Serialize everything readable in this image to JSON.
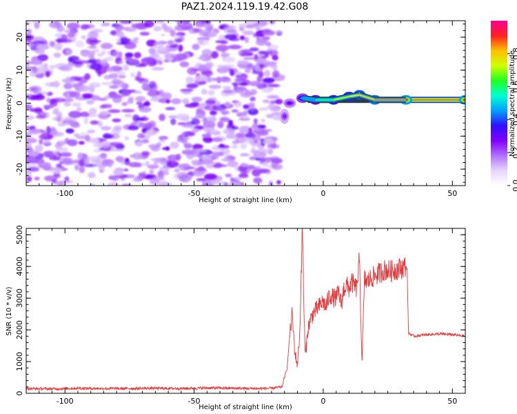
{
  "title": "PAZ1.2024.119.19.42.G08",
  "chart_data": [
    {
      "type": "heatmap",
      "xlabel": "Height of straight line (km)",
      "ylabel": "Frequency (Hz)",
      "xlim": [
        -115,
        55
      ],
      "ylim": [
        -25,
        25
      ],
      "x_ticks": [
        "-100",
        "-50",
        "0",
        "50"
      ],
      "x_tick_values": [
        -100,
        -50,
        0,
        50
      ],
      "y_ticks": [
        "-20",
        "-10",
        "0",
        "10",
        "20"
      ],
      "y_tick_values": [
        -20,
        -10,
        0,
        10,
        20
      ],
      "colorbar": {
        "label": "Normalized spectral amplitude",
        "range": [
          0,
          1
        ],
        "ticks": [
          "0.0",
          "0.2",
          "0.4",
          "0.6",
          "0.8"
        ],
        "tick_values": [
          0,
          0.2,
          0.4,
          0.6,
          0.8
        ],
        "colormap": [
          "#ffffff",
          "#e6d6ff",
          "#b070ff",
          "#8000ff",
          "#3010ff",
          "#00a0ff",
          "#00ffd0",
          "#20ff20",
          "#d0ff00",
          "#ffc000",
          "#ff2020",
          "#ff0090"
        ]
      },
      "noise_region": {
        "x_range": [
          -115,
          -17
        ],
        "frequency_range": [
          -25,
          25
        ],
        "amplitude": "~0.05-0.25"
      },
      "signal_band": [
        {
          "x": -15,
          "frequency": -4,
          "amplitude": 0.25
        },
        {
          "x": -13,
          "frequency": 0,
          "amplitude": 0.3
        },
        {
          "x": -8,
          "frequency": 1.5,
          "amplitude": 0.45
        },
        {
          "x": -3,
          "frequency": 1,
          "amplitude": 0.6
        },
        {
          "x": 4,
          "frequency": 1,
          "amplitude": 0.7
        },
        {
          "x": 10,
          "frequency": 2,
          "amplitude": 0.75
        },
        {
          "x": 14,
          "frequency": 2.5,
          "amplitude": 0.8
        },
        {
          "x": 20,
          "frequency": 1,
          "amplitude": 0.85
        },
        {
          "x": 32,
          "frequency": 1,
          "amplitude": 0.9
        },
        {
          "x": 55,
          "frequency": 1,
          "amplitude": 0.9
        }
      ]
    },
    {
      "type": "line",
      "xlabel": "Height of straight line (km)",
      "ylabel": "SNR (10 * v/v)",
      "xlim": [
        -115,
        55
      ],
      "ylim": [
        0,
        5200
      ],
      "x_ticks": [
        "-100",
        "-50",
        "0",
        "50"
      ],
      "x_tick_values": [
        -100,
        -50,
        0,
        50
      ],
      "y_ticks": [
        "0",
        "1000",
        "2000",
        "3000",
        "4000",
        "5000"
      ],
      "y_tick_values": [
        0,
        1000,
        2000,
        3000,
        4000,
        5000
      ],
      "line_color": "#e8363a",
      "series": [
        {
          "x": [
            -115,
            -105,
            -95,
            -85,
            -75,
            -65,
            -55,
            -45,
            -35,
            -25,
            -20,
            -16,
            -14,
            -13,
            -12,
            -11,
            -10,
            -9,
            -8.5,
            -8,
            -7.5,
            -7,
            -6.5,
            -6,
            -5,
            -4,
            -3,
            -2,
            -1,
            0,
            1,
            2,
            3,
            4,
            5,
            6,
            7,
            8,
            9,
            10,
            11,
            12,
            13,
            14,
            15,
            16,
            17,
            18,
            20,
            22,
            24,
            26,
            28,
            30,
            32,
            32.5,
            33,
            35,
            40,
            45,
            50,
            55
          ],
          "y": [
            150,
            140,
            160,
            150,
            150,
            160,
            150,
            170,
            160,
            150,
            160,
            200,
            800,
            1800,
            2500,
            1300,
            900,
            2000,
            4000,
            5200,
            2800,
            1200,
            1500,
            2000,
            2300,
            2500,
            2600,
            2700,
            2800,
            2900,
            2700,
            3000,
            3100,
            3000,
            3000,
            3200,
            2800,
            3300,
            3400,
            3300,
            3500,
            3400,
            3300,
            4200,
            1000,
            3600,
            3500,
            3600,
            3700,
            3800,
            3900,
            3850,
            3900,
            3950,
            4000,
            3900,
            1900,
            1800,
            1850,
            1870,
            1850,
            1800
          ]
        }
      ]
    }
  ]
}
